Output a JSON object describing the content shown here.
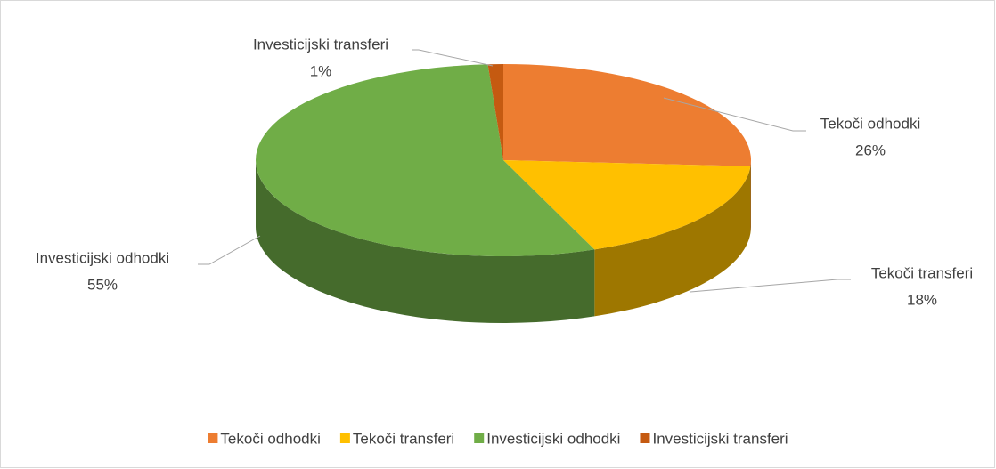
{
  "chart_data": {
    "type": "pie3d",
    "categories": [
      "Tekoči odhodki",
      "Tekoči transferi",
      "Investicijski odhodki",
      "Investicijski transferi"
    ],
    "values": [
      26,
      18,
      55,
      1
    ],
    "value_labels": [
      "26%",
      "18%",
      "55%",
      "1%"
    ],
    "colors": [
      "#ed7d31",
      "#ffc000",
      "#70ad47",
      "#c55a11"
    ],
    "legend": "bottom"
  }
}
